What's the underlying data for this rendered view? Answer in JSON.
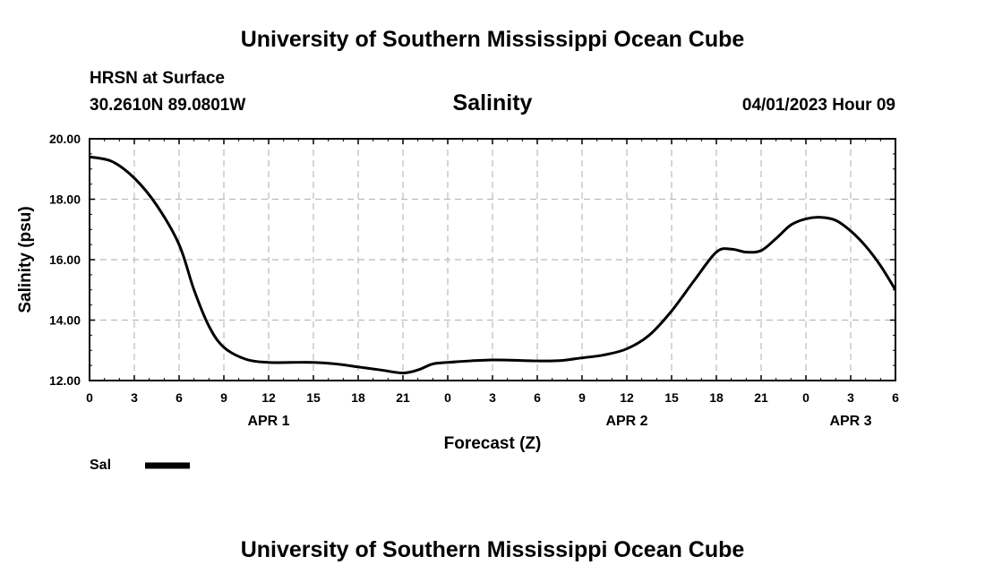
{
  "page": {
    "title_top": "University of Southern Mississippi Ocean Cube",
    "title_bottom": "University of Southern Mississippi Ocean Cube",
    "station": "HRSN at Surface",
    "coords": "30.2610N  89.0801W",
    "datetime": "04/01/2023 Hour 09"
  },
  "colors": {
    "line": "#000000",
    "grid": "#bbbbbb",
    "background": "#ffffff"
  },
  "chart_data": {
    "type": "line",
    "title": "Salinity",
    "xlabel": "Forecast (Z)",
    "ylabel": "Salinity (psu)",
    "ylim": [
      12,
      20
    ],
    "xlim": [
      0,
      54
    ],
    "yticks": [
      12,
      14,
      16,
      18,
      20
    ],
    "ytick_labels": [
      "12.00",
      "14.00",
      "16.00",
      "18.00",
      "20.00"
    ],
    "xticks": [
      0,
      3,
      6,
      9,
      12,
      15,
      18,
      21,
      24,
      27,
      30,
      33,
      36,
      39,
      42,
      45,
      48,
      51,
      54
    ],
    "xtick_labels": [
      "0",
      "3",
      "6",
      "9",
      "12",
      "15",
      "18",
      "21",
      "0",
      "3",
      "6",
      "9",
      "12",
      "15",
      "18",
      "21",
      "0",
      "3",
      "6"
    ],
    "date_labels": [
      {
        "x": 12,
        "label": "APR 1"
      },
      {
        "x": 36,
        "label": "APR 2"
      },
      {
        "x": 51,
        "label": "APR 3"
      }
    ],
    "grid": true,
    "legend": {
      "position": "bottom-left",
      "entries": [
        "Sal"
      ]
    },
    "series": [
      {
        "name": "Sal",
        "x": [
          0,
          1.5,
          3,
          4.5,
          6,
          7,
          8,
          9,
          10.5,
          12,
          13.5,
          15,
          16.5,
          18,
          19.5,
          21,
          22,
          23,
          24,
          25.5,
          27,
          28.5,
          30,
          31.5,
          33,
          34.5,
          36,
          37.5,
          39,
          40.5,
          42,
          43,
          44,
          45,
          46,
          47,
          48,
          49,
          50,
          51,
          52,
          53,
          54
        ],
        "values": [
          19.4,
          19.25,
          18.7,
          17.8,
          16.5,
          15.0,
          13.8,
          13.1,
          12.7,
          12.6,
          12.6,
          12.6,
          12.55,
          12.45,
          12.35,
          12.25,
          12.35,
          12.55,
          12.6,
          12.65,
          12.68,
          12.67,
          12.65,
          12.66,
          12.75,
          12.85,
          13.05,
          13.5,
          14.3,
          15.3,
          16.25,
          16.35,
          16.25,
          16.3,
          16.7,
          17.15,
          17.35,
          17.4,
          17.3,
          16.95,
          16.45,
          15.8,
          15.0
        ]
      }
    ]
  }
}
